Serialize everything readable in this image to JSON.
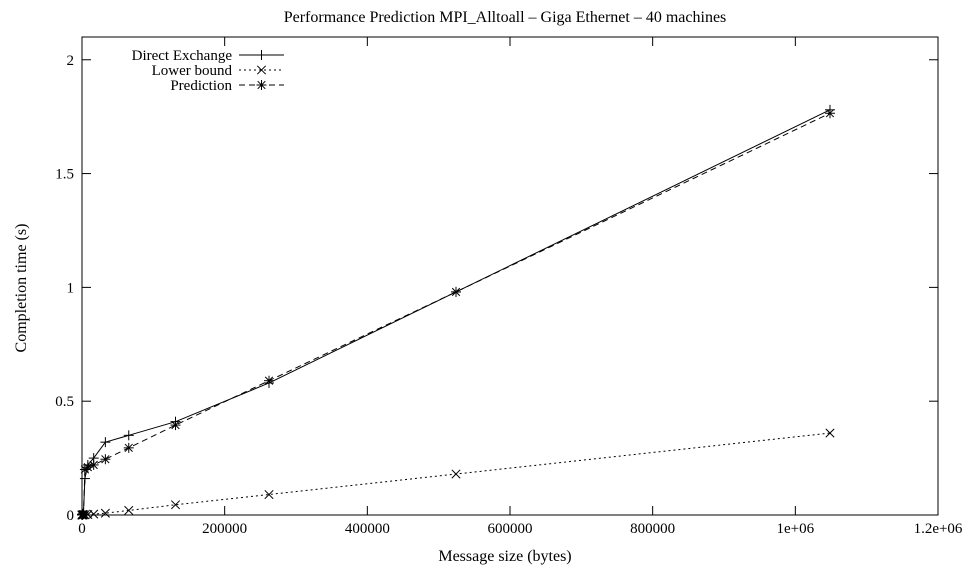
{
  "chart_data": {
    "type": "line",
    "title": "Performance Prediction MPI_Alltoall – Giga Ethernet – 40 machines",
    "xlabel": "Message size (bytes)",
    "ylabel": "Completion time (s)",
    "xlim": [
      0,
      1200000
    ],
    "ylim": [
      0,
      2.1
    ],
    "x_ticks": [
      0,
      200000,
      400000,
      600000,
      800000,
      1000000,
      1200000
    ],
    "x_tick_labels": [
      "0",
      "200000",
      "400000",
      "600000",
      "800000",
      "1e+06",
      "1.2e+06"
    ],
    "y_ticks": [
      0,
      0.5,
      1,
      1.5,
      2
    ],
    "y_tick_labels": [
      "0",
      "0.5",
      "1",
      "1.5",
      "2"
    ],
    "grid": false,
    "legend_position": "top-left",
    "series": [
      {
        "name": "Direct Exchange",
        "line_style": "solid",
        "marker": "plus",
        "x": [
          1,
          2,
          4,
          8,
          16,
          32,
          64,
          128,
          256,
          512,
          1024,
          2048,
          4096,
          8192,
          16384,
          32768,
          65536,
          131072,
          262144,
          524288,
          1048576
        ],
        "y": [
          0.001,
          0.001,
          0.001,
          0.001,
          0.001,
          0.001,
          0.001,
          0.001,
          0.002,
          0.003,
          0.005,
          0.01,
          0.16,
          0.22,
          0.25,
          0.32,
          0.35,
          0.41,
          0.58,
          0.98,
          1.78
        ]
      },
      {
        "name": "Lower bound",
        "line_style": "dotted",
        "marker": "cross",
        "x": [
          1,
          2,
          4,
          8,
          16,
          32,
          64,
          128,
          256,
          512,
          1024,
          2048,
          4096,
          8192,
          16384,
          32768,
          65536,
          131072,
          262144,
          524288,
          1048576
        ],
        "y": [
          0.0,
          0.0,
          0.0,
          0.0,
          0.0,
          0.0,
          0.0,
          0.0,
          0.0,
          0.0,
          0.0,
          0.001,
          0.001,
          0.002,
          0.004,
          0.008,
          0.02,
          0.045,
          0.09,
          0.18,
          0.36
        ]
      },
      {
        "name": "Prediction",
        "line_style": "dashed",
        "marker": "star",
        "x": [
          1,
          2,
          4,
          8,
          16,
          32,
          64,
          128,
          256,
          512,
          1024,
          2048,
          4096,
          8192,
          16384,
          32768,
          65536,
          131072,
          262144,
          524288,
          1048576
        ],
        "y": [
          0.001,
          0.001,
          0.001,
          0.001,
          0.001,
          0.001,
          0.001,
          0.001,
          0.001,
          0.002,
          0.003,
          0.004,
          0.2,
          0.21,
          0.22,
          0.245,
          0.295,
          0.395,
          0.59,
          0.98,
          1.765
        ]
      }
    ]
  }
}
